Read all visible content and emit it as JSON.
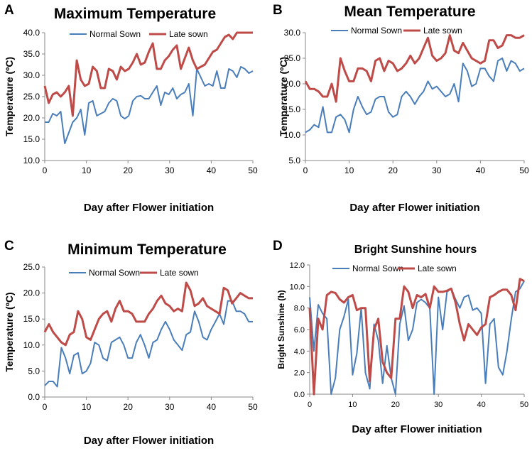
{
  "colors": {
    "normal": "#4a7ebb",
    "late": "#be4b48",
    "axis": "#888888",
    "text": "#000000"
  },
  "chart_data": [
    {
      "panel_letter": "A",
      "type": "line",
      "title": "Maximum Temperature",
      "xlabel": "Day after Flower initiation",
      "ylabel": "Temperature (ºC)",
      "xlim": [
        0,
        50
      ],
      "ylim": [
        10,
        40
      ],
      "x_ticks": [
        "0",
        "10",
        "20",
        "30",
        "40",
        "50"
      ],
      "y_ticks": [
        "10.0",
        "15.0",
        "20.0",
        "25.0",
        "30.0",
        "35.0",
        "40.0"
      ],
      "grid": false,
      "legend": "top",
      "series": [
        {
          "name": "Normal Sown",
          "color_key": "normal",
          "values": [
            19.0,
            19.0,
            21.0,
            20.5,
            21.5,
            14.0,
            16.5,
            19.0,
            20.0,
            22.0,
            16.0,
            23.5,
            24.0,
            20.5,
            21.0,
            21.5,
            23.5,
            24.5,
            24.0,
            20.5,
            19.8,
            20.5,
            24.0,
            25.0,
            25.2,
            24.5,
            24.5,
            26.0,
            27.5,
            23.0,
            26.0,
            25.5,
            27.0,
            24.5,
            25.5,
            26.0,
            28.0,
            20.5,
            31.5,
            29.5,
            27.5,
            28.0,
            27.5,
            31.0,
            27.0,
            27.0,
            31.5,
            31.0,
            29.5,
            32.0,
            31.5,
            30.5,
            31.0
          ]
        },
        {
          "name": "Late sown",
          "color_key": "late",
          "values": [
            27.5,
            23.5,
            25.5,
            26.0,
            25.0,
            26.0,
            27.5,
            20.5,
            33.5,
            29.0,
            27.5,
            28.0,
            32.0,
            31.0,
            27.0,
            27.0,
            31.5,
            31.0,
            29.0,
            32.0,
            31.0,
            31.5,
            33.0,
            35.0,
            32.5,
            33.0,
            35.5,
            37.5,
            31.5,
            31.5,
            33.5,
            34.5,
            36.0,
            37.0,
            31.5,
            34.0,
            36.5,
            33.5,
            31.5,
            32.0,
            32.5,
            34.0,
            35.5,
            36.0,
            37.5,
            39.0,
            39.5,
            38.5,
            40.0,
            40.0,
            40.0,
            40.0,
            40.0
          ]
        }
      ]
    },
    {
      "panel_letter": "B",
      "type": "line",
      "title": "Mean Temperature",
      "xlabel": "Day after Flower initiation",
      "ylabel": "Temperature (ºC)",
      "xlim": [
        0,
        50
      ],
      "ylim": [
        5,
        30
      ],
      "x_ticks": [
        "0",
        "10",
        "20",
        "30",
        "40",
        "50"
      ],
      "y_ticks": [
        "5.0",
        "10.0",
        "15.0",
        "20.0",
        "25.0",
        "30.0"
      ],
      "grid": false,
      "legend": "top",
      "series": [
        {
          "name": "Normal Sown",
          "color_key": "normal",
          "values": [
            10.5,
            11.0,
            12.0,
            11.5,
            15.5,
            10.5,
            10.5,
            13.5,
            14.0,
            13.0,
            10.5,
            15.0,
            17.5,
            15.5,
            14.0,
            14.5,
            17.0,
            17.5,
            17.5,
            14.5,
            13.5,
            14.0,
            17.5,
            18.5,
            17.5,
            16.0,
            17.5,
            18.5,
            20.5,
            19.0,
            19.5,
            18.5,
            17.5,
            18.0,
            20.0,
            16.5,
            24.0,
            22.5,
            19.5,
            20.0,
            23.0,
            23.0,
            21.5,
            20.5,
            24.5,
            25.0,
            22.5,
            24.5,
            24.0,
            22.5,
            23.0
          ]
        },
        {
          "name": "Late sown",
          "color_key": "late",
          "values": [
            20.5,
            19.0,
            19.0,
            18.5,
            17.5,
            17.5,
            20.0,
            16.5,
            25.0,
            22.5,
            20.5,
            20.5,
            23.0,
            23.0,
            22.5,
            20.5,
            24.5,
            25.0,
            22.5,
            24.5,
            24.0,
            22.5,
            23.0,
            24.0,
            25.5,
            24.0,
            25.0,
            27.0,
            29.0,
            25.5,
            24.5,
            25.0,
            26.0,
            29.5,
            26.5,
            26.0,
            28.0,
            26.5,
            25.0,
            24.5,
            24.0,
            24.5,
            28.5,
            28.5,
            27.0,
            27.5,
            29.5,
            29.5,
            29.0,
            29.0,
            29.5
          ]
        }
      ]
    },
    {
      "panel_letter": "C",
      "type": "line",
      "title": "Minimum Temperature",
      "xlabel": "Day after Flower initiation",
      "ylabel": "Temperature (ºC)",
      "xlim": [
        0,
        50
      ],
      "ylim": [
        0,
        25
      ],
      "x_ticks": [
        "0",
        "10",
        "20",
        "30",
        "40",
        "50"
      ],
      "y_ticks": [
        "0.0",
        "5.0",
        "10.0",
        "15.0",
        "20.0",
        "25.0"
      ],
      "grid": false,
      "legend": "top",
      "series": [
        {
          "name": "Normal Sown",
          "color_key": "normal",
          "values": [
            2.2,
            3.0,
            3.0,
            2.0,
            9.5,
            7.5,
            4.5,
            8.0,
            8.5,
            4.5,
            5.0,
            6.5,
            10.5,
            10.0,
            7.5,
            7.0,
            10.5,
            11.0,
            11.5,
            10.0,
            7.5,
            7.5,
            10.5,
            12.0,
            10.0,
            7.5,
            10.5,
            11.0,
            13.0,
            14.5,
            13.0,
            11.0,
            10.0,
            9.0,
            12.0,
            12.5,
            16.5,
            14.5,
            11.5,
            11.0,
            13.0,
            14.5,
            16.0,
            14.0,
            18.5,
            18.5,
            16.5,
            16.5,
            16.0,
            14.5,
            14.5
          ]
        },
        {
          "name": "Late sown",
          "color_key": "late",
          "values": [
            12.5,
            14.0,
            12.5,
            11.5,
            10.5,
            10.0,
            12.0,
            12.5,
            16.5,
            15.0,
            11.5,
            11.0,
            13.0,
            15.0,
            16.0,
            16.5,
            14.5,
            17.0,
            18.5,
            16.5,
            16.5,
            16.0,
            14.5,
            14.5,
            14.5,
            16.0,
            17.0,
            18.5,
            19.5,
            18.0,
            17.5,
            16.5,
            17.0,
            16.5,
            22.0,
            20.5,
            17.5,
            18.0,
            19.0,
            17.5,
            17.0,
            16.5,
            16.0,
            21.0,
            20.5,
            18.0,
            19.0,
            20.0,
            19.5,
            19.0,
            19.0
          ]
        }
      ]
    },
    {
      "panel_letter": "D",
      "type": "line",
      "title": "Bright Sunshine hours",
      "xlabel": "Day after Flower initiation",
      "ylabel": "Bright Sunshine (h)",
      "xlim": [
        0,
        50
      ],
      "ylim": [
        0,
        12
      ],
      "x_ticks": [
        "0",
        "10",
        "20",
        "30",
        "40",
        "50"
      ],
      "y_ticks": [
        "0.0",
        "2.0",
        "4.0",
        "6.0",
        "8.0",
        "10.0",
        "12.0"
      ],
      "grid": false,
      "legend": "top",
      "series": [
        {
          "name": "Normal Sown",
          "color_key": "normal",
          "values": [
            9.0,
            4.0,
            8.3,
            7.5,
            7.0,
            0.0,
            1.5,
            6.0,
            7.2,
            8.8,
            1.8,
            3.8,
            8.0,
            2.0,
            0.5,
            6.5,
            5.0,
            1.0,
            4.5,
            1.5,
            0.0,
            6.5,
            8.2,
            5.0,
            6.0,
            8.5,
            8.8,
            8.5,
            8.0,
            0.0,
            9.0,
            6.0,
            9.5,
            9.8,
            8.8,
            8.0,
            9.0,
            9.2,
            7.8,
            8.0,
            7.5,
            1.0,
            6.5,
            7.0,
            2.5,
            1.8,
            4.0,
            7.0,
            9.5,
            9.8,
            10.5
          ]
        },
        {
          "name": "Late sown",
          "color_key": "late",
          "values": [
            8.0,
            0.0,
            7.0,
            6.0,
            9.2,
            9.5,
            9.4,
            8.8,
            8.5,
            9.0,
            9.2,
            7.8,
            8.0,
            8.0,
            1.2,
            6.0,
            7.0,
            3.0,
            2.0,
            1.5,
            7.0,
            7.0,
            10.0,
            9.5,
            8.0,
            9.2,
            9.0,
            9.3,
            8.0,
            10.0,
            9.5,
            9.5,
            9.6,
            9.8,
            8.5,
            6.5,
            5.0,
            6.5,
            6.0,
            5.5,
            6.2,
            6.5,
            9.0,
            9.2,
            9.5,
            9.7,
            9.7,
            9.2,
            7.8,
            10.7,
            10.5
          ]
        }
      ]
    }
  ]
}
